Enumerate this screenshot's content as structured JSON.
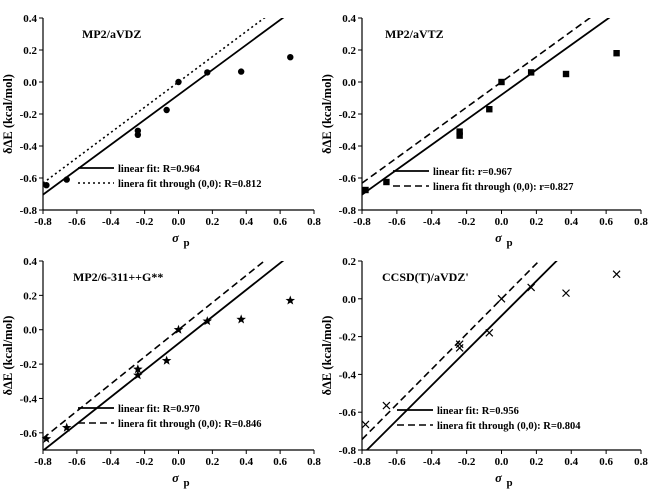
{
  "chart_data": [
    {
      "type": "scatter",
      "title": "MP2/aVDZ",
      "xlabel_main": "σ",
      "xlabel_sub": "p",
      "ylabel": "δΔE (kcal/mol)",
      "xlim": [
        -0.8,
        0.8
      ],
      "ylim": [
        -0.8,
        0.4
      ],
      "xticks": [
        "-0.8",
        "-0.6",
        "-0.4",
        "-0.2",
        "0.0",
        "0.2",
        "0.4",
        "0.6",
        "0.8"
      ],
      "yticks": [
        "-0.8",
        "-0.6",
        "-0.4",
        "-0.2",
        "0.0",
        "0.2",
        "0.4"
      ],
      "marker": "circle",
      "x": [
        -0.78,
        -0.66,
        -0.24,
        -0.24,
        -0.07,
        0.0,
        0.17,
        0.37,
        0.66
      ],
      "y": [
        -0.645,
        -0.61,
        -0.305,
        -0.33,
        -0.175,
        0.0,
        0.06,
        0.065,
        0.155
      ],
      "fits": [
        {
          "label": "linear fit: R=0.964",
          "style": "solid",
          "slope": 0.78,
          "intercept": -0.08
        },
        {
          "label": "linera fit through (0,0): R=0.812",
          "style": "dotted",
          "slope": 0.79,
          "intercept": 0.0
        }
      ]
    },
    {
      "type": "scatter",
      "title": "MP2/aVTZ",
      "xlabel_main": "σ",
      "xlabel_sub": "p",
      "ylabel": "δΔE (kcal/mol)",
      "xlim": [
        -0.8,
        0.8
      ],
      "ylim": [
        -0.8,
        0.4
      ],
      "xticks": [
        "-0.8",
        "-0.6",
        "-0.4",
        "-0.2",
        "0.0",
        "0.2",
        "0.4",
        "0.6",
        "0.8"
      ],
      "yticks": [
        "-0.8",
        "-0.6",
        "-0.4",
        "-0.2",
        "0.0",
        "0.2",
        "0.4"
      ],
      "marker": "square",
      "x": [
        -0.78,
        -0.66,
        -0.24,
        -0.24,
        -0.07,
        0.0,
        0.17,
        0.37,
        0.66
      ],
      "y": [
        -0.675,
        -0.625,
        -0.31,
        -0.335,
        -0.17,
        0.0,
        0.06,
        0.05,
        0.18
      ],
      "fits": [
        {
          "label": "linear fit:  r=0.967",
          "style": "solid",
          "slope": 0.78,
          "intercept": -0.08
        },
        {
          "label": "linera fit through (0,0): r=0.827",
          "style": "dashed",
          "slope": 0.79,
          "intercept": 0.0
        }
      ]
    },
    {
      "type": "scatter",
      "title": "MP2/6-311++G**",
      "xlabel_main": "σ",
      "xlabel_sub": "p",
      "ylabel": "δΔE (kcal/mol)",
      "xlim": [
        -0.8,
        0.8
      ],
      "ylim": [
        -0.7,
        0.4
      ],
      "xticks": [
        "-0.8",
        "-0.6",
        "-0.4",
        "-0.2",
        "0.0",
        "0.2",
        "0.4",
        "0.6",
        "0.8"
      ],
      "yticks": [
        "-0.6",
        "-0.4",
        "-0.2",
        "0.0",
        "0.2",
        "0.4"
      ],
      "marker": "star",
      "x": [
        -0.78,
        -0.66,
        -0.24,
        -0.24,
        -0.07,
        0.0,
        0.17,
        0.37,
        0.66
      ],
      "y": [
        -0.635,
        -0.57,
        -0.23,
        -0.265,
        -0.18,
        0.0,
        0.05,
        0.06,
        0.17
      ],
      "fits": [
        {
          "label": "linear fit:  R=0.970",
          "style": "solid",
          "slope": 0.78,
          "intercept": -0.08
        },
        {
          "label": "linera fit through (0,0): R=0.846",
          "style": "dashed",
          "slope": 0.79,
          "intercept": 0.0
        }
      ]
    },
    {
      "type": "scatter",
      "title": "CCSD(T)/aVDZ'",
      "xlabel_main": "σ",
      "xlabel_sub": "p",
      "ylabel": "δΔE (kcal/mol)",
      "xlim": [
        -0.8,
        0.8
      ],
      "ylim": [
        -0.8,
        0.2
      ],
      "xticks": [
        "-0.8",
        "-0.6",
        "-0.4",
        "-0.2",
        "0.0",
        "0.2",
        "0.4",
        "0.6",
        "0.8"
      ],
      "yticks": [
        "-0.8",
        "-0.6",
        "-0.4",
        "-0.2",
        "0.0",
        "0.2"
      ],
      "marker": "cross",
      "x": [
        -0.78,
        -0.66,
        -0.24,
        -0.24,
        -0.07,
        0.0,
        0.17,
        0.37,
        0.66
      ],
      "y": [
        -0.665,
        -0.565,
        -0.24,
        -0.26,
        -0.18,
        0.0,
        0.06,
        0.03,
        0.13
      ],
      "fits": [
        {
          "label": "linear fit: R=0.956",
          "style": "solid",
          "slope": 0.92,
          "intercept": -0.09
        },
        {
          "label": "linera fit through (0,0): R=0.804",
          "style": "dashed",
          "slope": 0.93,
          "intercept": 0.0
        }
      ]
    }
  ]
}
